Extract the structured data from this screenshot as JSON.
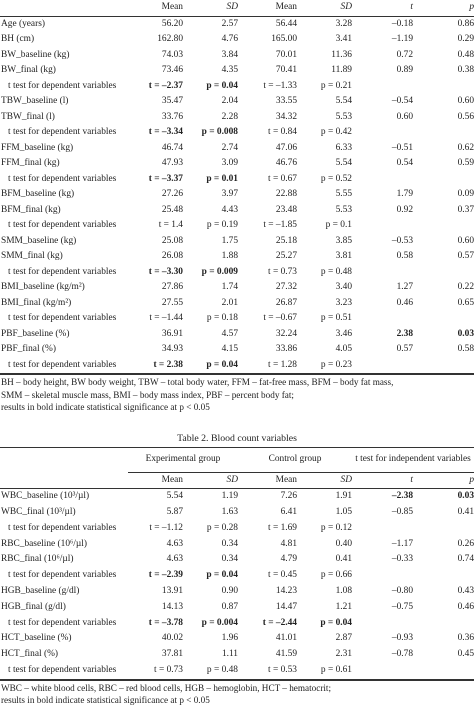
{
  "table1": {
    "header": [
      "",
      "Mean",
      "SD",
      "Mean",
      "SD",
      "t",
      "p"
    ],
    "rows": [
      {
        "cells": [
          "Age (years)",
          "56.20",
          "2.57",
          "56.44",
          "3.28",
          "–0.18",
          "0.86"
        ]
      },
      {
        "cells": [
          "BH (cm)",
          "162.80",
          "4.76",
          "165.00",
          "3.41",
          "–1.19",
          "0.29"
        ]
      },
      {
        "cells": [
          "BW_baseline (kg)",
          "74.03",
          "3.84",
          "70.01",
          "11.36",
          "0.72",
          "0.48"
        ]
      },
      {
        "cells": [
          "BW_final (kg)",
          "73.46",
          "4.35",
          "70.41",
          "11.89",
          "0.89",
          "0.38"
        ]
      },
      {
        "test": true,
        "t1": "t = –2.37",
        "p1": "p = 0.04",
        "t2": "t = –1.33",
        "p2": "p = 0.21",
        "t1_bold": true,
        "p1_bold": true,
        "t2_bold": false,
        "p2_bold": false
      },
      {
        "cells": [
          "TBW_baseline (l)",
          "35.47",
          "2.04",
          "33.55",
          "5.54",
          "–0.54",
          "0.60"
        ]
      },
      {
        "cells": [
          "TBW_final (l)",
          "33.76",
          "2.28",
          "34.32",
          "5.53",
          "0.60",
          "0.56"
        ]
      },
      {
        "test": true,
        "t1": "t = –3.34",
        "p1": "p = 0.008",
        "t2": "t = 0.84",
        "p2": "p = 0.42",
        "t1_bold": true,
        "p1_bold": true,
        "t2_bold": false,
        "p2_bold": false
      },
      {
        "cells": [
          "FFM_baseline (kg)",
          "46.74",
          "2.74",
          "47.06",
          "6.33",
          "–0.51",
          "0.62"
        ]
      },
      {
        "cells": [
          "FFM_final (kg)",
          "47.93",
          "3.09",
          "46.76",
          "5.54",
          "0.54",
          "0.59"
        ]
      },
      {
        "test": true,
        "t1": "t = –3.37",
        "p1": "p = 0.01",
        "t2": "t = 0.67",
        "p2": "p = 0.52",
        "t1_bold": true,
        "p1_bold": true,
        "t2_bold": false,
        "p2_bold": false
      },
      {
        "cells": [
          "BFM_baseline (kg)",
          "27.26",
          "3.97",
          "22.88",
          "5.55",
          "1.79",
          "0.09"
        ]
      },
      {
        "cells": [
          "BFM_final (kg)",
          "25.48",
          "4.43",
          "23.48",
          "5.53",
          "0.92",
          "0.37"
        ]
      },
      {
        "test": true,
        "t1": "t = 1.4",
        "p1": "p = 0.19",
        "t2": "t = –1.85",
        "p2": "p = 0.1",
        "t1_bold": false,
        "p1_bold": false,
        "t2_bold": false,
        "p2_bold": false
      },
      {
        "cells": [
          "SMM_baseline (kg)",
          "25.08",
          "1.75",
          "25.18",
          "3.85",
          "–0.53",
          "0.60"
        ]
      },
      {
        "cells": [
          "SMM_final (kg)",
          "26.08",
          "1.88",
          "25.27",
          "3.81",
          "0.58",
          "0.57"
        ]
      },
      {
        "test": true,
        "t1": "t = –3.30",
        "p1": "p = 0.009",
        "t2": "t = 0.73",
        "p2": "p = 0.48",
        "t1_bold": true,
        "p1_bold": true,
        "t2_bold": false,
        "p2_bold": false
      },
      {
        "cells": [
          "BMI_baseline (kg/m²)",
          "27.86",
          "1.74",
          "27.32",
          "3.40",
          "1.27",
          "0.22"
        ]
      },
      {
        "cells": [
          "BMI_final (kg/m²)",
          "27.55",
          "2.01",
          "26.87",
          "3.23",
          "0.46",
          "0.65"
        ]
      },
      {
        "test": true,
        "t1": "t = –1.44",
        "p1": "p = 0.18",
        "t2": "t = –0.67",
        "p2": "p = 0.51",
        "t1_bold": false,
        "p1_bold": false,
        "t2_bold": false,
        "p2_bold": false
      },
      {
        "cells": [
          "PBF_baseline (%)",
          "36.91",
          "4.57",
          "32.24",
          "3.46",
          "2.38",
          "0.03"
        ],
        "bold": [
          5,
          6
        ]
      },
      {
        "cells": [
          "PBF_final (%)",
          "34.93",
          "4.15",
          "33.86",
          "4.05",
          "0.57",
          "0.58"
        ]
      },
      {
        "test": true,
        "t1": "t = 2.38",
        "p1": "p = 0.04",
        "t2": "t = 1.28",
        "p2": "p = 0.23",
        "t1_bold": true,
        "p1_bold": true,
        "t2_bold": false,
        "p2_bold": false
      }
    ],
    "test_label": "t test for dependent variables",
    "notes": [
      "BH – body height, BW body weight, TBW – total body water, FFM – fat-free mass, BFM – body fat mass,",
      "SMM – skeletal muscle mass, BMI – body mass index, PBF – percent body fat;",
      "results in bold indicate statistical significance at p < 0.05"
    ]
  },
  "table2": {
    "caption": "Table 2. Blood count variables",
    "groups": [
      "Experimental group",
      "Control group",
      "t test for independent variables"
    ],
    "header": [
      "",
      "Mean",
      "SD",
      "Mean",
      "SD",
      "t",
      "p"
    ],
    "rows": [
      {
        "cells": [
          "WBC_baseline (10³/µl)",
          "5.54",
          "1.19",
          "7.26",
          "1.91",
          "–2.38",
          "0.03"
        ],
        "bold": [
          5,
          6
        ]
      },
      {
        "cells": [
          "WBC_final (10³/µl)",
          "5.87",
          "1.63",
          "6.41",
          "1.05",
          "–0.85",
          "0.41"
        ]
      },
      {
        "test": true,
        "t1": "t = –1.12",
        "p1": "p = 0.28",
        "t2": "t = 1.69",
        "p2": "p = 0.12",
        "t1_bold": false,
        "p1_bold": false,
        "t2_bold": false,
        "p2_bold": false
      },
      {
        "cells": [
          "RBC_baseline (10⁶/µl)",
          "4.63",
          "0.34",
          "4.81",
          "0.40",
          "–1.17",
          "0.26"
        ]
      },
      {
        "cells": [
          "RBC_final (10⁶/µl)",
          "4.63",
          "0.34",
          "4.79",
          "0.41",
          "–0.33",
          "0.74"
        ]
      },
      {
        "test": true,
        "t1": "t = –2.39",
        "p1": "p = 0.04",
        "t2": "t = 0.45",
        "p2": "p = 0.66",
        "t1_bold": true,
        "p1_bold": true,
        "t2_bold": false,
        "p2_bold": false
      },
      {
        "cells": [
          "HGB_baseline (g/dl)",
          "13.91",
          "0.90",
          "14.23",
          "1.08",
          "–0.80",
          "0.43"
        ]
      },
      {
        "cells": [
          "HGB_final (g/dl)",
          "14.13",
          "0.87",
          "14.47",
          "1.21",
          "–0.75",
          "0.46"
        ]
      },
      {
        "test": true,
        "t1": "t = –3.78",
        "p1": "p = 0.004",
        "t2": "t = –2.44",
        "p2": "p = 0.04",
        "t1_bold": true,
        "p1_bold": true,
        "t2_bold": true,
        "p2_bold": true
      },
      {
        "cells": [
          "HCT_baseline (%)",
          "40.02",
          "1.96",
          "41.01",
          "2.87",
          "–0.93",
          "0.36"
        ]
      },
      {
        "cells": [
          "HCT_final (%)",
          "37.81",
          "1.11",
          "41.59",
          "2.31",
          "–0.78",
          "0.45"
        ]
      },
      {
        "test": true,
        "t1": "t = 0.73",
        "p1": "p = 0.48",
        "t2": "t = 0.53",
        "p2": "p = 0.61",
        "t1_bold": false,
        "p1_bold": false,
        "t2_bold": false,
        "p2_bold": false
      }
    ],
    "test_label": "t test for dependent variables",
    "notes": [
      "WBC – white blood cells, RBC – red blood cells, HGB – hemoglobin, HCT – hematocrit;",
      "results in bold indicate statistical significance at p < 0.05"
    ]
  }
}
